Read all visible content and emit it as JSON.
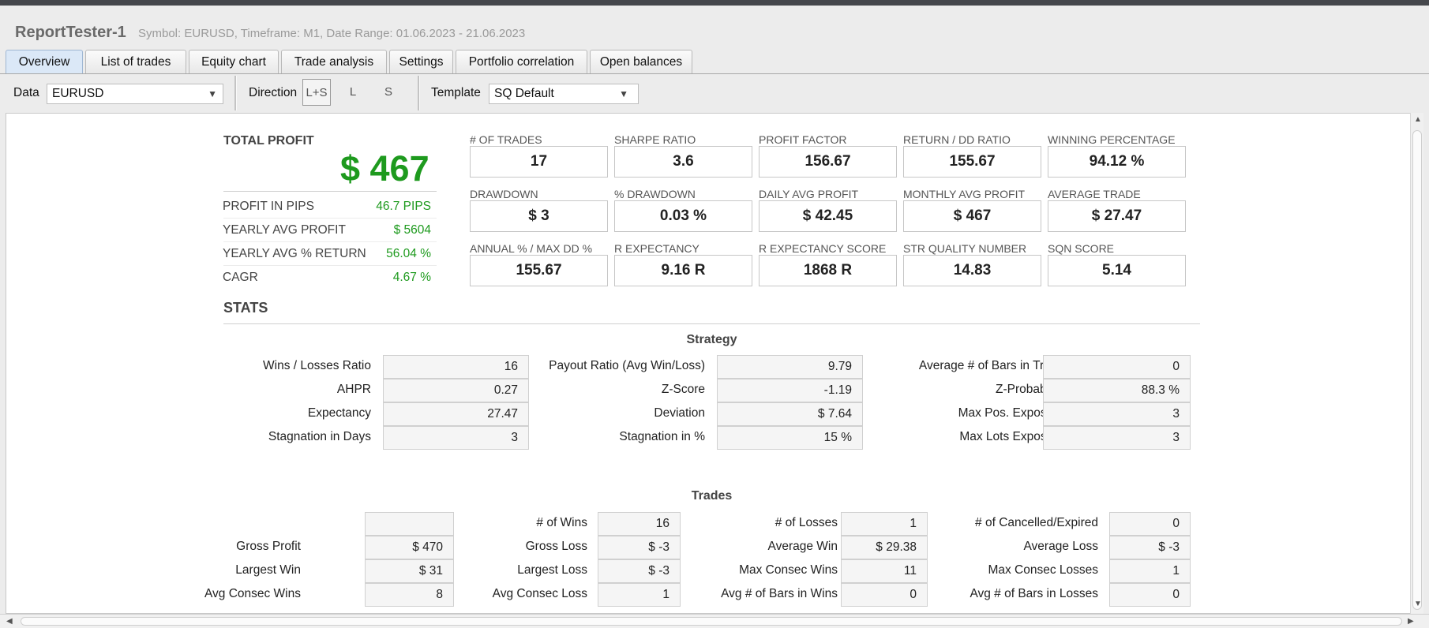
{
  "window": {
    "title": "ReportTester-1",
    "subtitle": "Symbol: EURUSD, Timeframe: M1, Date Range: 01.06.2023 - 21.06.2023"
  },
  "tabs": [
    {
      "label": "Overview",
      "active": true
    },
    {
      "label": "List of trades"
    },
    {
      "label": "Equity chart"
    },
    {
      "label": "Trade analysis"
    },
    {
      "label": "Settings"
    },
    {
      "label": "Portfolio correlation"
    },
    {
      "label": "Open balances"
    }
  ],
  "toolbar": {
    "data_label": "Data",
    "data_value": "EURUSD",
    "direction_label": "Direction",
    "directions": [
      "L+S",
      "L",
      "S"
    ],
    "direction_selected": "L+S",
    "template_label": "Template",
    "template_value": "SQ Default"
  },
  "summary": {
    "total_profit_label": "TOTAL PROFIT",
    "total_profit_value": "$ 467",
    "rows": [
      {
        "label": "PROFIT IN PIPS",
        "value": "46.7 PIPS"
      },
      {
        "label": "YEARLY AVG PROFIT",
        "value": "$ 5604"
      },
      {
        "label": "YEARLY AVG % RETURN",
        "value": "56.04 %"
      },
      {
        "label": "CAGR",
        "value": "4.67 %"
      }
    ]
  },
  "metrics": [
    {
      "label": "# OF TRADES",
      "value": "17"
    },
    {
      "label": "SHARPE RATIO",
      "value": "3.6"
    },
    {
      "label": "PROFIT FACTOR",
      "value": "156.67"
    },
    {
      "label": "RETURN / DD RATIO",
      "value": "155.67"
    },
    {
      "label": "WINNING PERCENTAGE",
      "value": "94.12 %"
    },
    {
      "label": "DRAWDOWN",
      "value": "$ 3"
    },
    {
      "label": "% DRAWDOWN",
      "value": "0.03 %"
    },
    {
      "label": "DAILY AVG PROFIT",
      "value": "$ 42.45"
    },
    {
      "label": "MONTHLY AVG PROFIT",
      "value": "$ 467"
    },
    {
      "label": "AVERAGE TRADE",
      "value": "$ 27.47"
    },
    {
      "label": "ANNUAL % / MAX DD %",
      "value": "155.67"
    },
    {
      "label": "R EXPECTANCY",
      "value": "9.16 R"
    },
    {
      "label": "R EXPECTANCY SCORE",
      "value": "1868 R"
    },
    {
      "label": "STR QUALITY NUMBER",
      "value": "14.83"
    },
    {
      "label": "SQN SCORE",
      "value": "5.14"
    }
  ],
  "stats": {
    "title": "STATS",
    "strategy_title": "Strategy",
    "strategy": [
      [
        {
          "label": "Wins / Losses Ratio",
          "value": "16"
        },
        {
          "label": "Payout Ratio (Avg Win/Loss)",
          "value": "9.79"
        },
        {
          "label": "Average # of Bars in Trade",
          "value": "0"
        }
      ],
      [
        {
          "label": "AHPR",
          "value": "0.27"
        },
        {
          "label": "Z-Score",
          "value": "-1.19"
        },
        {
          "label": "Z-Probability",
          "value": "88.3 %"
        }
      ],
      [
        {
          "label": "Expectancy",
          "value": "27.47"
        },
        {
          "label": "Deviation",
          "value": "$ 7.64"
        },
        {
          "label": "Max Pos. Exposure",
          "value": "3"
        }
      ],
      [
        {
          "label": "Stagnation in Days",
          "value": "3"
        },
        {
          "label": "Stagnation in %",
          "value": "15 %"
        },
        {
          "label": "Max Lots Exposure",
          "value": "3"
        }
      ]
    ],
    "trades_title": "Trades",
    "trades": [
      [
        {
          "label": "",
          "value": ""
        },
        {
          "label": "# of Wins",
          "value": "16"
        },
        {
          "label": "# of Losses",
          "value": "1"
        },
        {
          "label": "# of Cancelled/Expired",
          "value": "0"
        }
      ],
      [
        {
          "label": "Gross Profit",
          "value": "$ 470"
        },
        {
          "label": "Gross Loss",
          "value": "$ -3"
        },
        {
          "label": "Average Win",
          "value": "$ 29.38"
        },
        {
          "label": "Average Loss",
          "value": "$ -3"
        }
      ],
      [
        {
          "label": "Largest Win",
          "value": "$ 31"
        },
        {
          "label": "Largest Loss",
          "value": "$ -3"
        },
        {
          "label": "Max Consec Wins",
          "value": "11"
        },
        {
          "label": "Max Consec Losses",
          "value": "1"
        }
      ],
      [
        {
          "label": "Avg Consec Wins",
          "value": "8"
        },
        {
          "label": "Avg Consec Loss",
          "value": "1"
        },
        {
          "label": "Avg # of Bars in Wins",
          "value": "0"
        },
        {
          "label": "Avg # of Bars in Losses",
          "value": "0"
        }
      ]
    ]
  }
}
